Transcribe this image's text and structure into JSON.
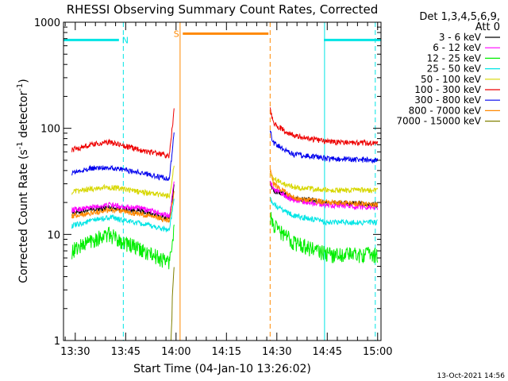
{
  "chart_data": {
    "type": "line",
    "title": "RHESSI Observing Summary Count Rates, Corrected",
    "xlabel": "Start Time (04-Jan-10 13:26:02)",
    "ylabel_main": "Corrected Count Rate (s",
    "ylabel_sup1": "-1",
    "ylabel_mid": " detector",
    "ylabel_sup2": "-1",
    "ylabel_end": ")",
    "yscale": "log",
    "ylim": [
      1,
      1000
    ],
    "xlim_minutes": [
      -3.5,
      91
    ],
    "x_unit": "minutes after 13:30",
    "y_ticks": [
      {
        "v": 1,
        "label": "1"
      },
      {
        "v": 10,
        "label": "10"
      },
      {
        "v": 100,
        "label": "100"
      },
      {
        "v": 1000,
        "label": "1000"
      }
    ],
    "x_ticks": [
      {
        "v": 0,
        "label": "13:30"
      },
      {
        "v": 15,
        "label": "13:45"
      },
      {
        "v": 30,
        "label": "14:00"
      },
      {
        "v": 45,
        "label": "14:15"
      },
      {
        "v": 60,
        "label": "14:30"
      },
      {
        "v": 75,
        "label": "14:45"
      },
      {
        "v": 90,
        "label": "15:00"
      }
    ],
    "legend": {
      "title1": "Det 1,3,4,5,6,9,",
      "title2": "Att 0",
      "placement": "right"
    },
    "series": [
      {
        "name": "3 - 6 keV",
        "color": "#000000",
        "x": [
          -1,
          5,
          10,
          20,
          28,
          29.5,
          58,
          59,
          65,
          75,
          90
        ],
        "y": [
          16,
          17,
          18,
          16.5,
          14,
          30,
          30,
          26,
          22,
          20,
          19
        ]
      },
      {
        "name": "6 - 12 keV",
        "color": "#ff00ff",
        "x": [
          -1,
          5,
          10,
          20,
          28,
          29.5,
          58,
          59,
          65,
          75,
          90
        ],
        "y": [
          17,
          18,
          19,
          17.5,
          15,
          32,
          32,
          27,
          21,
          19,
          18
        ]
      },
      {
        "name": "12 - 25 keV",
        "color": "#00ee00",
        "x": [
          -1,
          5,
          10,
          20,
          28,
          29.5,
          58,
          59,
          65,
          75,
          90
        ],
        "y": [
          7,
          9,
          10,
          7,
          5.5,
          12,
          15,
          12,
          8.5,
          6.5,
          6.5
        ]
      },
      {
        "name": "25 - 50 keV",
        "color": "#00e5e5",
        "x": [
          -1,
          5,
          10,
          20,
          28,
          29.5,
          58,
          59,
          65,
          75,
          90
        ],
        "y": [
          12,
          13.5,
          14.5,
          12.5,
          11,
          22,
          22,
          19,
          15,
          13,
          13
        ]
      },
      {
        "name": "50 - 100 keV",
        "color": "#d7d700",
        "x": [
          -1,
          5,
          10,
          20,
          28,
          29.5,
          58,
          59,
          65,
          75,
          90
        ],
        "y": [
          25,
          27,
          28,
          25,
          23,
          45,
          38,
          33,
          28,
          26,
          26
        ]
      },
      {
        "name": "100 - 300 keV",
        "color": "#ee0000",
        "x": [
          -1,
          5,
          10,
          20,
          28,
          29.5,
          58,
          59,
          65,
          75,
          90
        ],
        "y": [
          63,
          70,
          74,
          62,
          55,
          160,
          150,
          110,
          85,
          75,
          72
        ]
      },
      {
        "name": "300 - 800 keV",
        "color": "#0000ee",
        "x": [
          -1,
          5,
          10,
          20,
          28,
          29.5,
          58,
          59,
          65,
          75,
          90
        ],
        "y": [
          38,
          42,
          43,
          38,
          33,
          95,
          95,
          72,
          57,
          52,
          50
        ]
      },
      {
        "name": "800 - 7000 keV",
        "color": "#ff8800",
        "x": [
          -1,
          5,
          10,
          20,
          28,
          29.5,
          58,
          59,
          65,
          75,
          90
        ],
        "y": [
          15,
          16,
          17,
          15.5,
          13.5,
          26,
          40,
          30,
          22,
          20,
          19
        ]
      },
      {
        "name": "7000 - 15000 keV",
        "color": "#808000",
        "x": [
          28.5,
          29,
          29.5
        ],
        "y": [
          1,
          3,
          5
        ]
      }
    ],
    "bars": [
      {
        "label": "N",
        "color": "#00e5e5",
        "x0": -3.5,
        "x1": 13,
        "y": 680
      },
      {
        "label": "S",
        "color": "#ff8800",
        "x0": 32,
        "x1": 57.5,
        "y": 780
      },
      {
        "label": "",
        "color": "#00e5e5",
        "x0": 74,
        "x1": 91,
        "y": 680
      }
    ],
    "vlines": [
      {
        "x": 14.3,
        "color": "#00e5e5",
        "style": "dashed"
      },
      {
        "x": 74.2,
        "color": "#00e5e5",
        "style": "solid"
      },
      {
        "x": 89.3,
        "color": "#00e5e5",
        "style": "dashed"
      },
      {
        "x": 31.2,
        "color": "#ff8800",
        "style": "solid"
      },
      {
        "x": 58.0,
        "color": "#ff8800",
        "style": "dashed"
      }
    ],
    "footer": "13-Oct-2021 14:56"
  }
}
